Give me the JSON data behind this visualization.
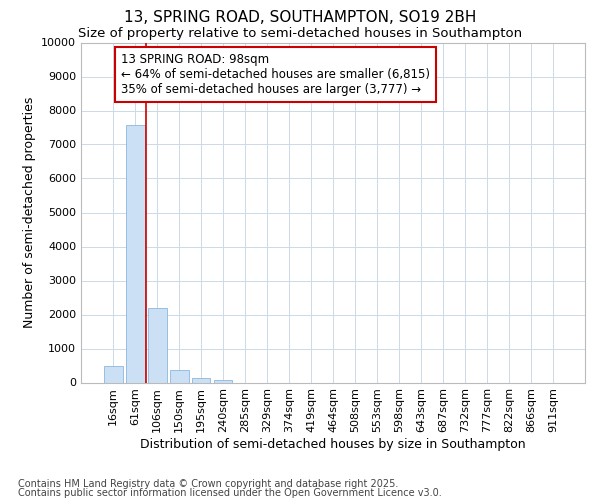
{
  "title": "13, SPRING ROAD, SOUTHAMPTON, SO19 2BH",
  "subtitle": "Size of property relative to semi-detached houses in Southampton",
  "xlabel": "Distribution of semi-detached houses by size in Southampton",
  "ylabel": "Number of semi-detached properties",
  "footer1": "Contains HM Land Registry data © Crown copyright and database right 2025.",
  "footer2": "Contains public sector information licensed under the Open Government Licence v3.0.",
  "annotation_line0": "13 SPRING ROAD: 98sqm",
  "annotation_line1": "← 64% of semi-detached houses are smaller (6,815)",
  "annotation_line2": "35% of semi-detached houses are larger (3,777) →",
  "bar_color": "#cce0f5",
  "bar_edge_color": "#89b8de",
  "redline_color": "#cc0000",
  "background_color": "#ffffff",
  "grid_color": "#ccd9e8",
  "categories": [
    "16sqm",
    "61sqm",
    "106sqm",
    "150sqm",
    "195sqm",
    "240sqm",
    "285sqm",
    "329sqm",
    "374sqm",
    "419sqm",
    "464sqm",
    "508sqm",
    "553sqm",
    "598sqm",
    "643sqm",
    "687sqm",
    "732sqm",
    "777sqm",
    "822sqm",
    "866sqm",
    "911sqm"
  ],
  "values": [
    490,
    7570,
    2200,
    370,
    130,
    80,
    0,
    0,
    0,
    0,
    0,
    0,
    0,
    0,
    0,
    0,
    0,
    0,
    0,
    0,
    0
  ],
  "ylim": [
    0,
    10000
  ],
  "yticks": [
    0,
    1000,
    2000,
    3000,
    4000,
    5000,
    6000,
    7000,
    8000,
    9000,
    10000
  ],
  "redline_x": 1.5,
  "title_fontsize": 11,
  "subtitle_fontsize": 9.5,
  "axis_label_fontsize": 9,
  "tick_fontsize": 8,
  "footer_fontsize": 7,
  "annotation_fontsize": 8.5
}
